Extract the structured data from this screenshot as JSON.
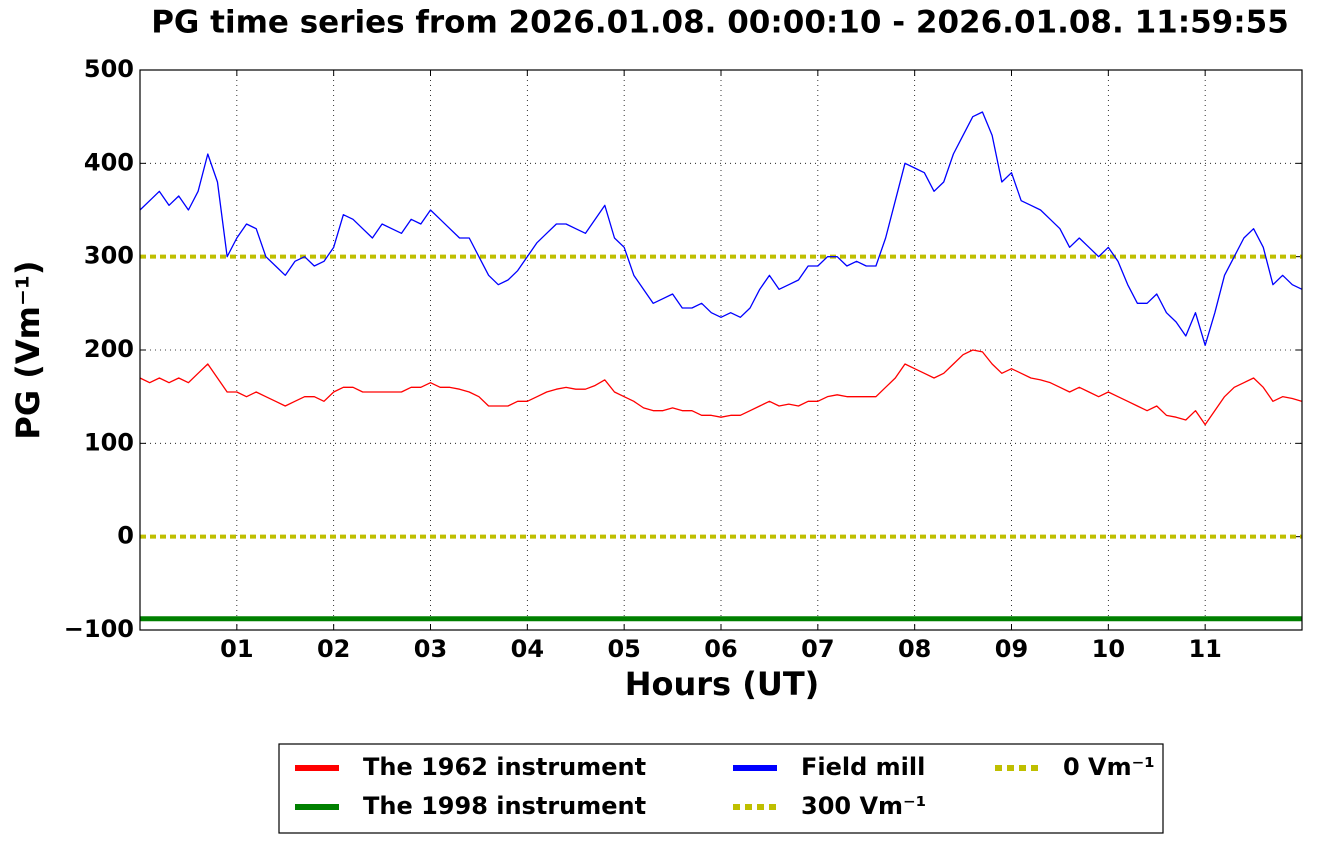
{
  "chart_data": {
    "type": "line",
    "title": "PG time series from 2026.01.08. 00:00:10 - 2026.01.08. 11:59:55",
    "x_label": "Hours (UT)",
    "y_label": "PG (Vm⁻¹)",
    "xlim": [
      0,
      12
    ],
    "ylim": [
      -100,
      500
    ],
    "xticks": [
      {
        "value": 1,
        "label": "01"
      },
      {
        "value": 2,
        "label": "02"
      },
      {
        "value": 3,
        "label": "03"
      },
      {
        "value": 4,
        "label": "04"
      },
      {
        "value": 5,
        "label": "05"
      },
      {
        "value": 6,
        "label": "06"
      },
      {
        "value": 7,
        "label": "07"
      },
      {
        "value": 8,
        "label": "08"
      },
      {
        "value": 9,
        "label": "09"
      },
      {
        "value": 10,
        "label": "10"
      },
      {
        "value": 11,
        "label": "11"
      }
    ],
    "yticks": [
      {
        "value": -100,
        "label": "−100"
      },
      0,
      100,
      200,
      300,
      400,
      500
    ],
    "grid": true,
    "legend": "bottom",
    "x": [
      0,
      0.1,
      0.2,
      0.3,
      0.4,
      0.5,
      0.6,
      0.7,
      0.8,
      0.9,
      1,
      1.1,
      1.2,
      1.3,
      1.4,
      1.5,
      1.6,
      1.7,
      1.8,
      1.9,
      2,
      2.1,
      2.2,
      2.3,
      2.4,
      2.5,
      2.6,
      2.7,
      2.8,
      2.9,
      3,
      3.1,
      3.2,
      3.3,
      3.4,
      3.5,
      3.6,
      3.7,
      3.8,
      3.9,
      4,
      4.1,
      4.2,
      4.3,
      4.4,
      4.5,
      4.6,
      4.7,
      4.8,
      4.9,
      5,
      5.1,
      5.2,
      5.3,
      5.4,
      5.5,
      5.6,
      5.7,
      5.8,
      5.9,
      6,
      6.1,
      6.2,
      6.3,
      6.4,
      6.5,
      6.6,
      6.7,
      6.8,
      6.9,
      7,
      7.1,
      7.2,
      7.3,
      7.4,
      7.5,
      7.6,
      7.7,
      7.8,
      7.9,
      8,
      8.1,
      8.2,
      8.3,
      8.4,
      8.5,
      8.6,
      8.7,
      8.8,
      8.9,
      9,
      9.1,
      9.2,
      9.3,
      9.4,
      9.5,
      9.6,
      9.7,
      9.8,
      9.9,
      10,
      10.1,
      10.2,
      10.3,
      10.4,
      10.5,
      10.6,
      10.7,
      10.8,
      10.9,
      11,
      11.1,
      11.2,
      11.3,
      11.4,
      11.5,
      11.6,
      11.7,
      11.8,
      11.9,
      12
    ],
    "series": [
      {
        "name": "The 1962 instrument",
        "color": "#ff0000",
        "values": [
          170,
          165,
          170,
          165,
          170,
          165,
          175,
          185,
          170,
          155,
          155,
          150,
          155,
          150,
          145,
          140,
          145,
          150,
          150,
          145,
          155,
          160,
          160,
          155,
          155,
          155,
          155,
          155,
          160,
          160,
          165,
          160,
          160,
          158,
          155,
          150,
          140,
          140,
          140,
          145,
          145,
          150,
          155,
          158,
          160,
          158,
          158,
          162,
          168,
          155,
          150,
          145,
          138,
          135,
          135,
          138,
          135,
          135,
          130,
          130,
          128,
          130,
          130,
          135,
          140,
          145,
          140,
          142,
          140,
          145,
          145,
          150,
          152,
          150,
          150,
          150,
          150,
          160,
          170,
          185,
          180,
          175,
          170,
          175,
          185,
          195,
          200,
          198,
          185,
          175,
          180,
          175,
          170,
          168,
          165,
          160,
          155,
          160,
          155,
          150,
          155,
          150,
          145,
          140,
          135,
          140,
          130,
          128,
          125,
          135,
          120,
          135,
          150,
          160,
          165,
          170,
          160,
          145,
          150,
          148,
          145
        ]
      },
      {
        "name": "The 1998 instrument",
        "color": "#008000",
        "x": [
          0,
          12
        ],
        "values": [
          -88,
          -88
        ]
      },
      {
        "name": "Field mill",
        "color": "#0000ff",
        "values": [
          350,
          360,
          370,
          355,
          365,
          350,
          370,
          410,
          380,
          300,
          320,
          335,
          330,
          300,
          290,
          280,
          295,
          300,
          290,
          295,
          310,
          345,
          340,
          330,
          320,
          335,
          330,
          325,
          340,
          335,
          350,
          340,
          330,
          320,
          320,
          300,
          280,
          270,
          275,
          285,
          300,
          315,
          325,
          335,
          335,
          330,
          325,
          340,
          355,
          320,
          310,
          280,
          265,
          250,
          255,
          260,
          245,
          245,
          250,
          240,
          235,
          240,
          235,
          245,
          265,
          280,
          265,
          270,
          275,
          290,
          290,
          300,
          300,
          290,
          295,
          290,
          290,
          320,
          360,
          400,
          395,
          390,
          370,
          380,
          410,
          430,
          450,
          455,
          430,
          380,
          390,
          360,
          355,
          350,
          340,
          330,
          310,
          320,
          310,
          300,
          310,
          295,
          270,
          250,
          250,
          260,
          240,
          230,
          215,
          240,
          205,
          240,
          280,
          300,
          320,
          330,
          310,
          270,
          280,
          270,
          265
        ]
      }
    ],
    "hlines": [
      {
        "name": "300 Vm⁻¹",
        "value": 300,
        "color": "#bfbf00"
      },
      {
        "name": "0 Vm⁻¹",
        "value": 0,
        "color": "#bfbf00"
      }
    ]
  }
}
